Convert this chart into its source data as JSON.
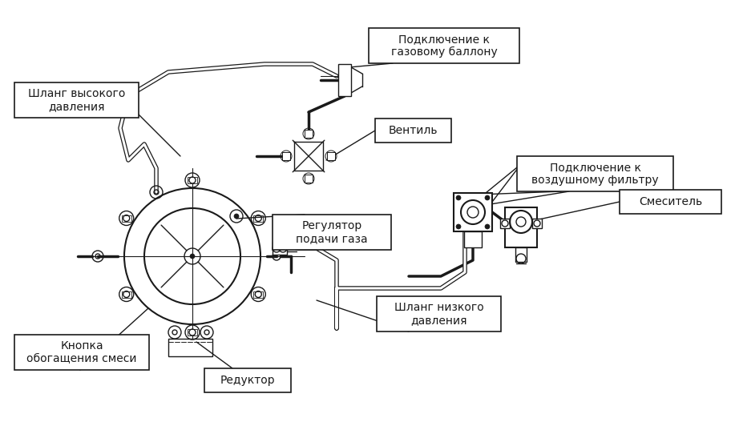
{
  "bg_color": "#ffffff",
  "line_color": "#1a1a1a",
  "labels": {
    "high_pressure_hose": "Шланг высокого\nдавления",
    "gas_cylinder_conn": "Подключение к\nгазовому баллону",
    "valve": "Вентиль",
    "air_filter_conn": "Подключение к\nвоздушному фильтру",
    "mixer": "Смеситель",
    "gas_regulator": "Регулятор\nподачи газа",
    "low_pressure_hose": "Шланг низкого\nдавления",
    "enrichment_button": "Кнопка\nобогащения смеси",
    "reductor": "Редуктор"
  },
  "figsize": [
    9.17,
    5.52
  ],
  "dpi": 100
}
